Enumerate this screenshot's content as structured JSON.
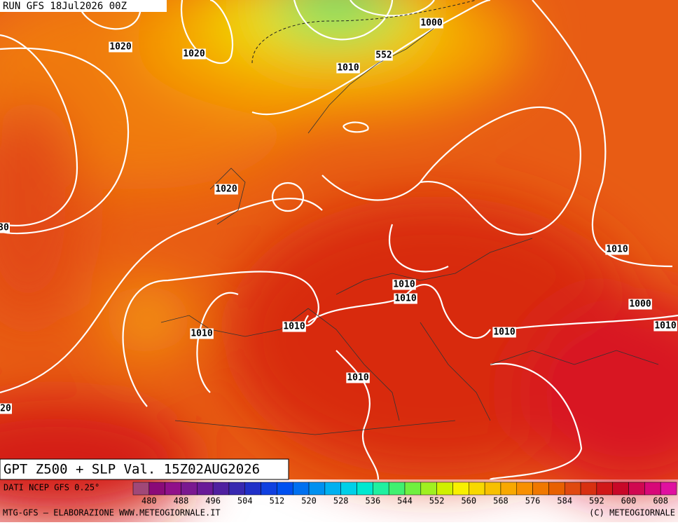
{
  "header": {
    "run": "RUN GFS 18Jul2026 00Z"
  },
  "map": {
    "isobar_labels": [
      "1020",
      "1020",
      "1000",
      "552",
      "1010",
      "1020",
      "30",
      "1010",
      "1010",
      "1010",
      "1010",
      "1010",
      "1010",
      "1010",
      "1000",
      "1010",
      "20"
    ]
  },
  "title": "GPT Z500 + SLP Val. 15Z02AUG2026",
  "legend": {
    "caption": "DATI NCEP GFS 0.25°",
    "ticks": [
      480,
      488,
      496,
      504,
      512,
      520,
      528,
      536,
      544,
      552,
      560,
      568,
      576,
      584,
      592,
      600,
      608
    ],
    "colors": [
      "#a04878",
      "#8a0a78",
      "#90108a",
      "#7a1890",
      "#6a1a98",
      "#5020a0",
      "#3828b0",
      "#2030c8",
      "#1040e0",
      "#0050f0",
      "#0070f0",
      "#0090f0",
      "#00b0f0",
      "#00d0e8",
      "#00e8d0",
      "#20f0a0",
      "#40f070",
      "#70f040",
      "#a0f020",
      "#d0f000",
      "#f8f000",
      "#f8d800",
      "#f8c000",
      "#f8a800",
      "#f89000",
      "#f07800",
      "#e86000",
      "#e04810",
      "#d83010",
      "#d01818",
      "#c80828",
      "#d00850",
      "#d80878",
      "#e010a0"
    ]
  },
  "footer": {
    "left": "MTG-GFS — ELABORAZIONE WWW.METEOGIORNALE.IT",
    "right": "(C) METEOGIORNALE"
  }
}
